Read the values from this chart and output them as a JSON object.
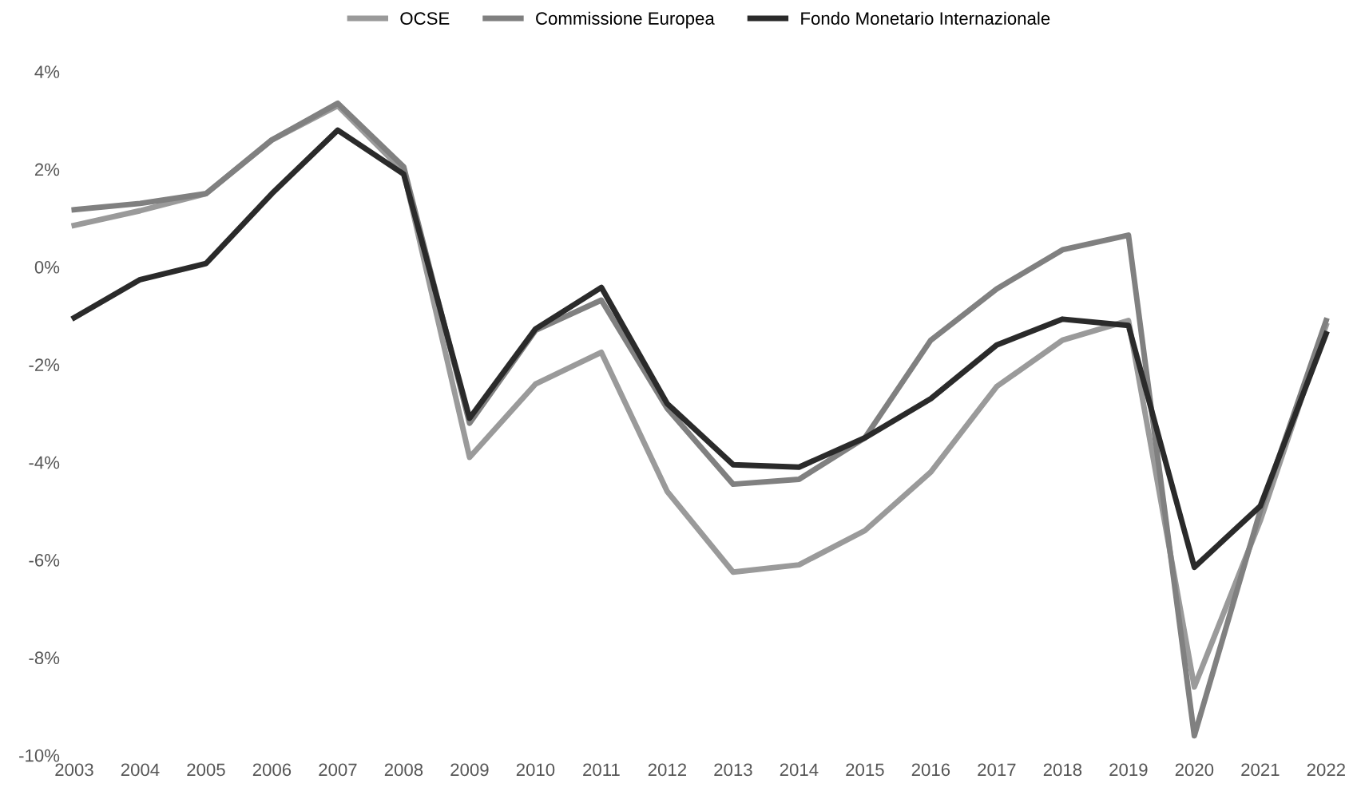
{
  "chart_data": {
    "type": "line",
    "categories": [
      "2003",
      "2004",
      "2005",
      "2006",
      "2007",
      "2008",
      "2009",
      "2010",
      "2011",
      "2012",
      "2013",
      "2014",
      "2015",
      "2016",
      "2017",
      "2018",
      "2019",
      "2020",
      "2021",
      "2022"
    ],
    "series": [
      {
        "name": "OCSE",
        "color": "#9a9a9a",
        "values": [
          0.85,
          1.15,
          1.5,
          2.6,
          3.3,
          1.95,
          -3.9,
          -2.4,
          -1.75,
          -4.6,
          -6.25,
          -6.1,
          -5.4,
          -4.2,
          -2.45,
          -1.5,
          -1.1,
          -8.6,
          -5.2,
          -1.2
        ]
      },
      {
        "name": "Commissione Europea",
        "color": "#808080",
        "values": [
          1.17,
          1.3,
          1.5,
          2.6,
          3.35,
          2.05,
          -3.2,
          -1.3,
          -0.68,
          -2.9,
          -4.45,
          -4.35,
          -3.5,
          -1.5,
          -0.45,
          0.35,
          0.65,
          -9.6,
          -5.0,
          -1.1
        ]
      },
      {
        "name": "Fondo Monetario Internazionale",
        "color": "#2a2a2a",
        "values": [
          -1.04,
          -0.26,
          0.07,
          1.5,
          2.8,
          1.9,
          -3.1,
          -1.27,
          -0.42,
          -2.8,
          -4.05,
          -4.1,
          -3.5,
          -2.7,
          -1.6,
          -1.07,
          -1.2,
          -6.15,
          -4.9,
          -1.37
        ]
      }
    ],
    "ylim": [
      -10,
      4
    ],
    "yticks": [
      {
        "value": -10,
        "label": "-10%"
      },
      {
        "value": -8,
        "label": "-8%"
      },
      {
        "value": -6,
        "label": "-6%"
      },
      {
        "value": -4,
        "label": "-4%"
      },
      {
        "value": -2,
        "label": "-2%"
      },
      {
        "value": 0,
        "label": "0%"
      },
      {
        "value": 2,
        "label": "2%"
      },
      {
        "value": 4,
        "label": "4%"
      }
    ],
    "legend": "top",
    "grid": false
  }
}
